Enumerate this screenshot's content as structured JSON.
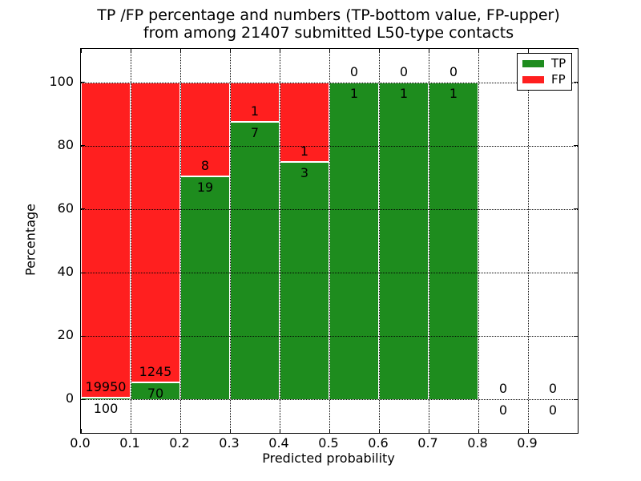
{
  "title": {
    "line1": "TP /FP percentage and numbers (TP-bottom value, FP-upper)",
    "line2": "from among 21407 submitted L50-type contacts"
  },
  "chart_data": {
    "type": "bar",
    "stacked": true,
    "title": "TP /FP percentage and numbers (TP-bottom value, FP-upper)\nfrom among 21407 submitted L50-type contacts",
    "xlabel": "Predicted probability",
    "ylabel": "Percentage",
    "xlim": [
      0.0,
      1.0
    ],
    "ylim": [
      -10.5,
      110.5
    ],
    "grid": true,
    "x_tick_positions": [
      0.0,
      0.1,
      0.2,
      0.3,
      0.4,
      0.5,
      0.6,
      0.7,
      0.8,
      0.9
    ],
    "x_tick_labels": [
      "0.0",
      "0.1",
      "0.2",
      "0.3",
      "0.4",
      "0.5",
      "0.6",
      "0.7",
      "0.8",
      "0.9"
    ],
    "y_tick_positions": [
      0,
      20,
      40,
      60,
      80,
      100
    ],
    "y_tick_labels": [
      "0",
      "20",
      "40",
      "60",
      "80",
      "100"
    ],
    "colors": {
      "tp": "#1e8c1e",
      "fp": "#ff1f1f"
    },
    "legend": {
      "position": "upper right",
      "entries": [
        {
          "label": "TP",
          "color": "#1e8c1e"
        },
        {
          "label": "FP",
          "color": "#ff1f1f"
        }
      ]
    },
    "bins": [
      {
        "range": [
          0.0,
          0.1
        ],
        "tp": 100,
        "fp": 19950,
        "tp_pct": 0.5,
        "fp_pct": 99.5
      },
      {
        "range": [
          0.1,
          0.2
        ],
        "tp": 70,
        "fp": 1245,
        "tp_pct": 5.32,
        "fp_pct": 94.68
      },
      {
        "range": [
          0.2,
          0.3
        ],
        "tp": 19,
        "fp": 8,
        "tp_pct": 70.37,
        "fp_pct": 29.63
      },
      {
        "range": [
          0.3,
          0.4
        ],
        "tp": 7,
        "fp": 1,
        "tp_pct": 87.5,
        "fp_pct": 12.5
      },
      {
        "range": [
          0.4,
          0.5
        ],
        "tp": 3,
        "fp": 1,
        "tp_pct": 75.0,
        "fp_pct": 25.0
      },
      {
        "range": [
          0.5,
          0.6
        ],
        "tp": 1,
        "fp": 0,
        "tp_pct": 100.0,
        "fp_pct": 0.0
      },
      {
        "range": [
          0.6,
          0.7
        ],
        "tp": 1,
        "fp": 0,
        "tp_pct": 100.0,
        "fp_pct": 0.0
      },
      {
        "range": [
          0.7,
          0.8
        ],
        "tp": 1,
        "fp": 0,
        "tp_pct": 100.0,
        "fp_pct": 0.0
      },
      {
        "range": [
          0.8,
          0.9
        ],
        "tp": 0,
        "fp": 0,
        "tp_pct": null,
        "fp_pct": null
      },
      {
        "range": [
          0.9,
          1.0
        ],
        "tp": 0,
        "fp": 0,
        "tp_pct": null,
        "fp_pct": null
      }
    ]
  }
}
